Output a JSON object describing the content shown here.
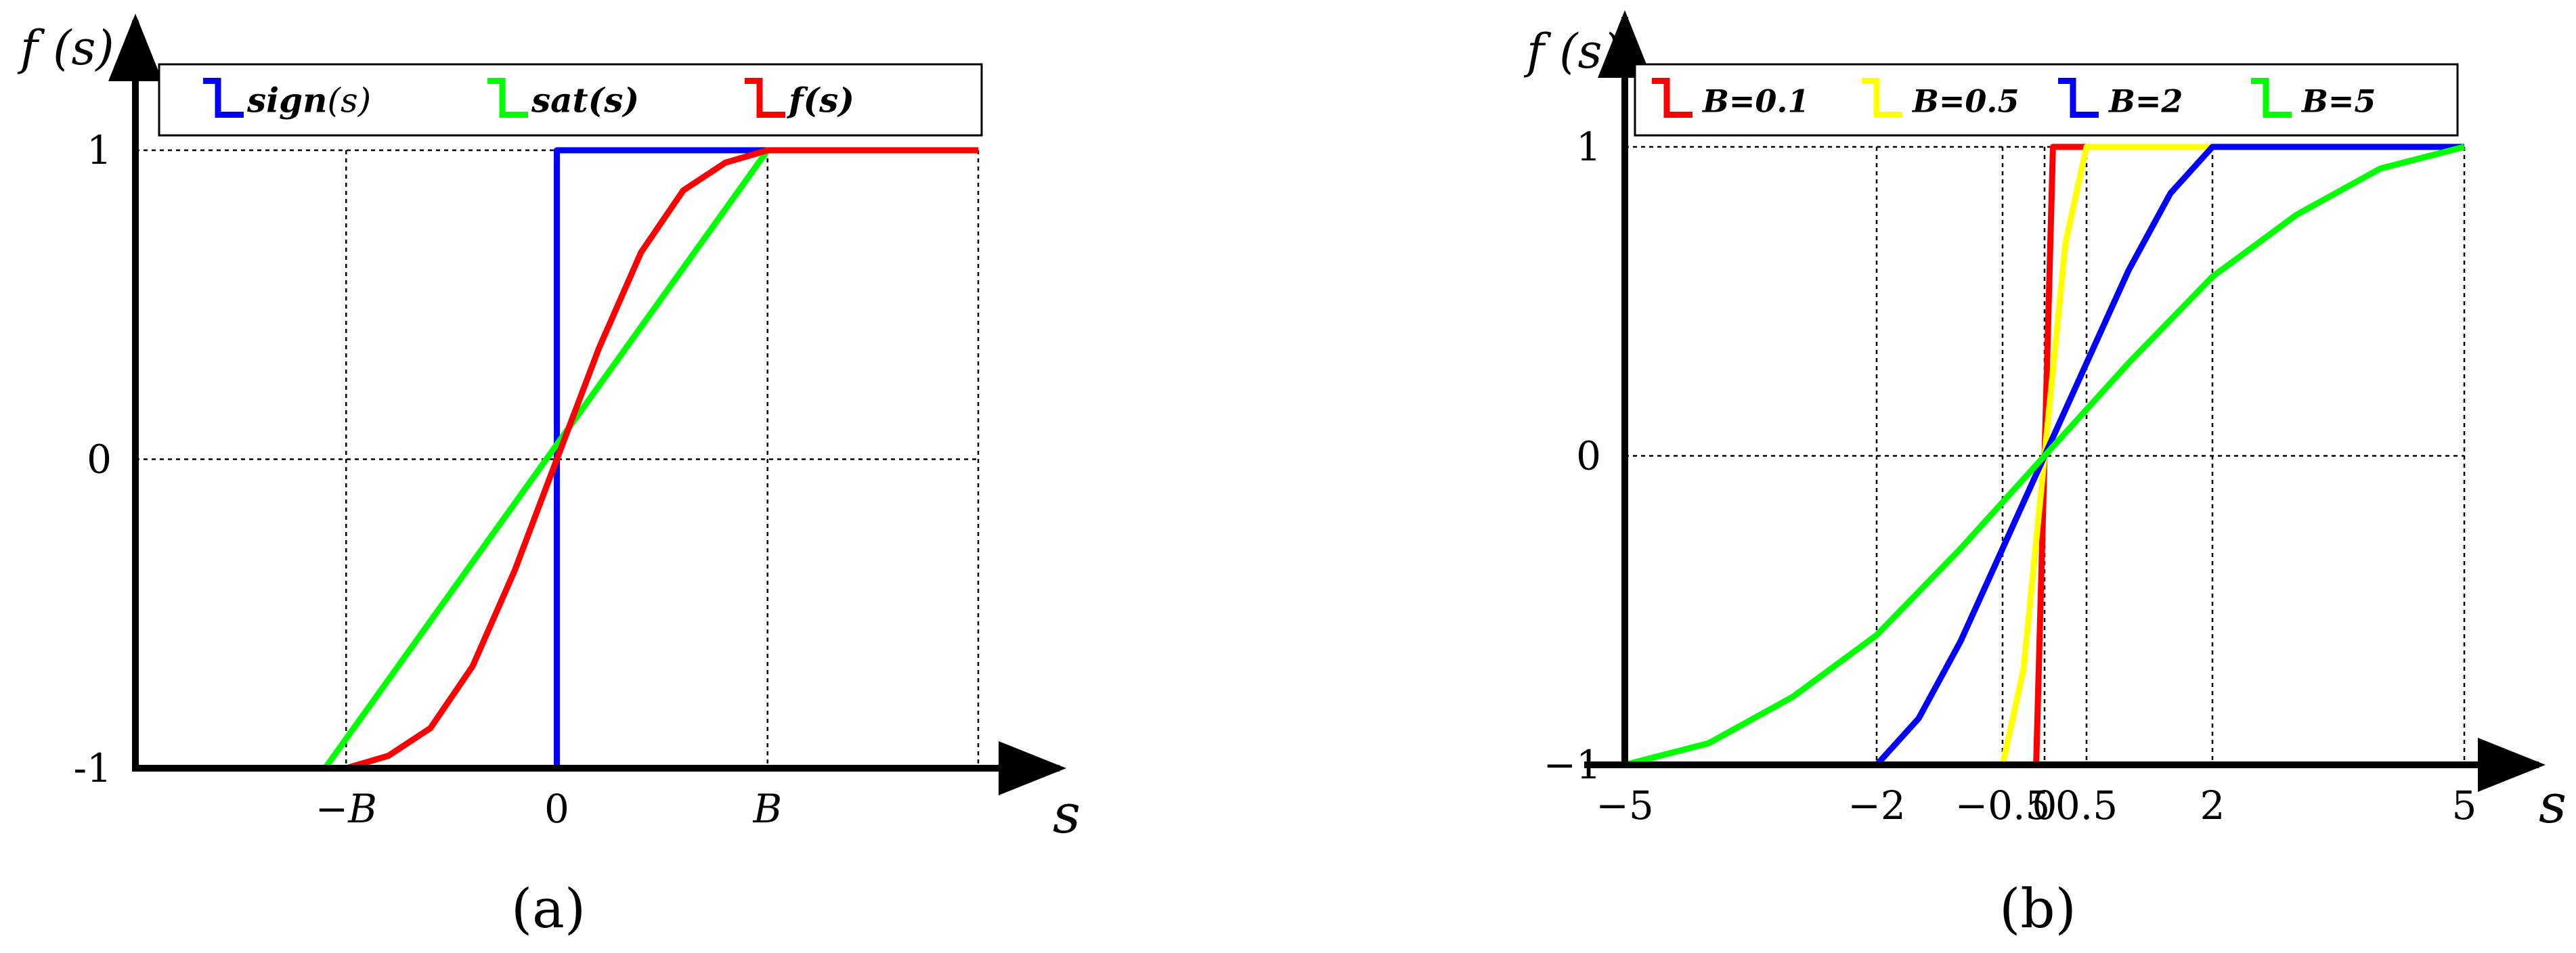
{
  "chart_data": [
    {
      "panel_label": "(a)",
      "type": "line",
      "ylabel": "f (s)",
      "xlabel": "s",
      "x_ticks": [
        {
          "value": -1,
          "label": "−B"
        },
        {
          "value": 0,
          "label": "0"
        },
        {
          "value": 1,
          "label": "B"
        }
      ],
      "y_ticks": [
        {
          "value": -1,
          "label": "-1"
        },
        {
          "value": 0,
          "label": "0"
        },
        {
          "value": 1,
          "label": "1"
        }
      ],
      "xlim": [
        -2,
        2
      ],
      "ylim": [
        -1,
        1
      ],
      "grid": true,
      "legend_position": "top",
      "series": [
        {
          "name": "sign",
          "legend_suffix": "(s)",
          "color": "#0000ff",
          "x": [
            -2,
            0,
            0,
            2
          ],
          "y": [
            -1,
            -1,
            1,
            1
          ]
        },
        {
          "name": "sat(s)",
          "color": "#00ff00",
          "x": [
            -1.1,
            1,
            2
          ],
          "y": [
            -1,
            1,
            1
          ]
        },
        {
          "name": "f(s)",
          "color": "#ff0000",
          "x": [
            -1,
            -0.8,
            -0.6,
            -0.4,
            -0.2,
            0,
            0.2,
            0.4,
            0.6,
            0.8,
            1,
            2
          ],
          "y": [
            -1,
            -0.96,
            -0.87,
            -0.67,
            -0.36,
            0,
            0.36,
            0.67,
            0.87,
            0.96,
            1,
            1
          ]
        }
      ]
    },
    {
      "panel_label": "(b)",
      "type": "line",
      "ylabel": "f (s)",
      "xlabel": "s",
      "x_ticks": [
        {
          "value": -5,
          "label": "−5"
        },
        {
          "value": -2,
          "label": "−2"
        },
        {
          "value": -0.5,
          "label": "−0.5"
        },
        {
          "value": 0,
          "label": "0"
        },
        {
          "value": 0.5,
          "label": "0.5"
        },
        {
          "value": 2,
          "label": "2"
        },
        {
          "value": 5,
          "label": "5"
        }
      ],
      "y_ticks": [
        {
          "value": -1,
          "label": "−1"
        },
        {
          "value": 0,
          "label": "0"
        },
        {
          "value": 1,
          "label": "1"
        }
      ],
      "xlim": [
        -5,
        5
      ],
      "ylim": [
        -1,
        1
      ],
      "grid": true,
      "legend_position": "top",
      "series": [
        {
          "name": "B=0.1",
          "color": "#ff0000",
          "x": [
            -5,
            -0.1,
            0.1,
            5
          ],
          "y": [
            -1,
            -1,
            1,
            1
          ]
        },
        {
          "name": "B=0.5",
          "color": "#ffff00",
          "x": [
            -5,
            -0.5,
            -0.25,
            0,
            0.25,
            0.5,
            5
          ],
          "y": [
            -1,
            -1,
            -0.69,
            0,
            0.69,
            1,
            1
          ]
        },
        {
          "name": "B=2",
          "color": "#0000ff",
          "x": [
            -5,
            -2,
            -1.5,
            -1,
            -0.5,
            0,
            0.5,
            1,
            1.5,
            2,
            5
          ],
          "y": [
            -1,
            -1,
            -0.85,
            -0.6,
            -0.3,
            0,
            0.3,
            0.6,
            0.85,
            1,
            1
          ]
        },
        {
          "name": "B=5",
          "color": "#00ff00",
          "x": [
            -5,
            -4,
            -3,
            -2,
            -1,
            0,
            1,
            2,
            3,
            4,
            5
          ],
          "y": [
            -1,
            -0.93,
            -0.78,
            -0.58,
            -0.3,
            0,
            0.3,
            0.58,
            0.78,
            0.93,
            1
          ]
        }
      ]
    }
  ]
}
